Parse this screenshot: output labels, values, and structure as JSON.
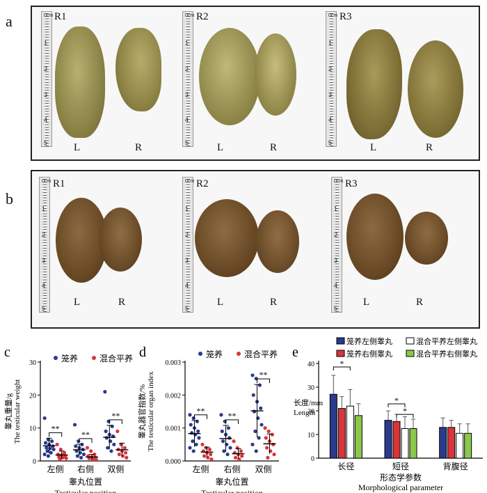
{
  "panels": {
    "a": {
      "label": "a",
      "samples": [
        {
          "tag": "R1",
          "left": "L",
          "right": "R",
          "ruler_ticks": [
            "0cm",
            "1",
            "2",
            "3",
            "4",
            "5"
          ]
        },
        {
          "tag": "R2",
          "left": "L",
          "right": "R",
          "ruler_ticks": [
            "0cm",
            "1",
            "2",
            "3",
            "4",
            "5"
          ]
        },
        {
          "tag": "R3",
          "left": "L",
          "right": "R",
          "ruler_ticks": [
            "0cm",
            "1",
            "2",
            "3",
            "4",
            "5"
          ]
        }
      ]
    },
    "b": {
      "label": "b",
      "samples": [
        {
          "tag": "R1",
          "left": "L",
          "right": "R",
          "ruler_ticks": [
            "0cm",
            "1",
            "2",
            "3",
            "4",
            "5"
          ]
        },
        {
          "tag": "R2",
          "left": "L",
          "right": "R",
          "ruler_ticks": [
            "0cm",
            "1",
            "2",
            "3",
            "4",
            "5"
          ]
        },
        {
          "tag": "R3",
          "left": "L",
          "right": "R",
          "ruler_ticks": [
            "0cm",
            "1",
            "2",
            "3",
            "4",
            "5"
          ]
        }
      ]
    }
  },
  "colors": {
    "cage": "#2a3a8c",
    "mixed": "#d9343a",
    "green": "#8cc84b",
    "white": "#ffffff"
  },
  "chart_data": [
    {
      "panel": "c",
      "type": "scatter",
      "title": "",
      "legend": [
        "笼养",
        "混合平养"
      ],
      "ylabel_cn": "睾丸重量/g",
      "ylabel_en": "The testicular weight",
      "xlabel_cn": "睾丸位置",
      "xlabel_en": "Testicular position",
      "categories": [
        "左侧",
        "右侧",
        "双侧"
      ],
      "ylim": [
        0,
        30
      ],
      "yticks": [
        "0",
        "10",
        "20",
        "30"
      ],
      "series": [
        {
          "name": "笼养",
          "means": [
            4.6,
            3.4,
            7.2
          ],
          "sd": [
            2.3,
            1.7,
            3.6
          ],
          "points": [
            [
              13,
              6.5,
              6,
              5.5,
              5,
              4.5,
              4,
              3.8,
              3.5,
              3,
              2.5,
              2,
              1.5
            ],
            [
              11,
              6,
              5,
              4.5,
              4,
              3.5,
              3,
              2.5,
              2,
              1.5,
              1
            ],
            [
              21,
              12,
              10.5,
              9,
              8,
              7.5,
              7,
              6,
              5,
              4,
              3
            ]
          ]
        },
        {
          "name": "混合平养",
          "means": [
            1.8,
            1.2,
            3.4
          ],
          "sd": [
            1.2,
            0.8,
            2.0
          ],
          "points": [
            [
              5,
              3.5,
              2.5,
              2,
              1.8,
              1.5,
              1.2,
              1,
              0.8,
              0.5
            ],
            [
              4,
              3,
              2,
              1.5,
              1.2,
              1,
              0.8,
              0.5,
              0.3
            ],
            [
              9,
              5,
              4,
              3.5,
              3,
              2.5,
              2,
              1.5,
              1
            ]
          ]
        }
      ],
      "significance": [
        "**",
        "**",
        "**"
      ]
    },
    {
      "panel": "d",
      "type": "scatter",
      "legend": [
        "笼养",
        "混合平养"
      ],
      "ylabel_cn": "睾丸器官指数/%",
      "ylabel_en": "The testicular organ index",
      "xlabel_cn": "睾丸位置",
      "xlabel_en": "Testicular position",
      "categories": [
        "左侧",
        "右侧",
        "双侧"
      ],
      "ylim": [
        0,
        0.003
      ],
      "yticks": [
        "0.000",
        "0.001",
        "0.002",
        "0.003"
      ],
      "series": [
        {
          "name": "笼养",
          "means": [
            0.00083,
            0.00068,
            0.00152
          ],
          "sd": [
            0.0004,
            0.0004,
            0.0008
          ],
          "points": [
            [
              0.0014,
              0.0013,
              0.0012,
              0.0011,
              0.001,
              0.0009,
              0.00085,
              0.0008,
              0.0007,
              0.0006,
              0.0005,
              0.0004,
              0.0003
            ],
            [
              0.0014,
              0.0012,
              0.001,
              0.0009,
              0.0008,
              0.0007,
              0.0006,
              0.0005,
              0.0004,
              0.0003,
              0.0002
            ],
            [
              0.0026,
              0.0025,
              0.0023,
              0.002,
              0.0018,
              0.0016,
              0.0015,
              0.0013,
              0.0011,
              0.0009,
              0.0007,
              0.0005,
              0.0003
            ]
          ]
        },
        {
          "name": "混合平养",
          "means": [
            0.00027,
            0.00022,
            0.00052
          ],
          "sd": [
            0.00015,
            0.00015,
            0.0003
          ],
          "points": [
            [
              0.0005,
              0.0004,
              0.00035,
              0.0003,
              0.00025,
              0.0002,
              0.00015,
              0.0001,
              5e-05
            ],
            [
              0.0006,
              0.0004,
              0.0003,
              0.00025,
              0.0002,
              0.00015,
              0.0001,
              5e-05
            ],
            [
              0.001,
              0.0009,
              0.0008,
              0.0007,
              0.0006,
              0.0005,
              0.0004,
              0.0003,
              0.0002,
              0.0001
            ]
          ]
        }
      ],
      "significance": [
        "**",
        "**",
        "**"
      ]
    },
    {
      "panel": "e",
      "type": "bar",
      "legend": [
        "笼养左侧睾丸",
        "笼养右侧睾丸",
        "混合平养左侧睾丸",
        "混合平养右侧睾丸"
      ],
      "ylabel_cn": "长度/mm",
      "ylabel_en": "Length",
      "xlabel_cn": "形态学参数",
      "xlabel_en": "Morphological parameter",
      "categories": [
        "长径",
        "短径",
        "背腹径"
      ],
      "ylim": [
        0,
        40
      ],
      "yticks": [
        "0",
        "10",
        "20",
        "30",
        "40"
      ],
      "series": [
        {
          "name": "笼养左侧睾丸",
          "values": [
            27,
            16,
            13
          ],
          "err": [
            8,
            4,
            4
          ]
        },
        {
          "name": "笼养右侧睾丸",
          "values": [
            21,
            15.5,
            13
          ],
          "err": [
            5,
            3,
            3
          ]
        },
        {
          "name": "混合平养左侧睾丸",
          "values": [
            22,
            12.5,
            10.5
          ],
          "err": [
            7,
            5,
            4
          ]
        },
        {
          "name": "混合平养右侧睾丸",
          "values": [
            18,
            12.5,
            10.5
          ],
          "err": [
            5,
            4,
            4
          ]
        }
      ],
      "significance": [
        {
          "category": "长径",
          "label": "*"
        },
        {
          "category": "短径",
          "label": "*"
        },
        {
          "category": "短径",
          "label": "*"
        }
      ]
    }
  ]
}
